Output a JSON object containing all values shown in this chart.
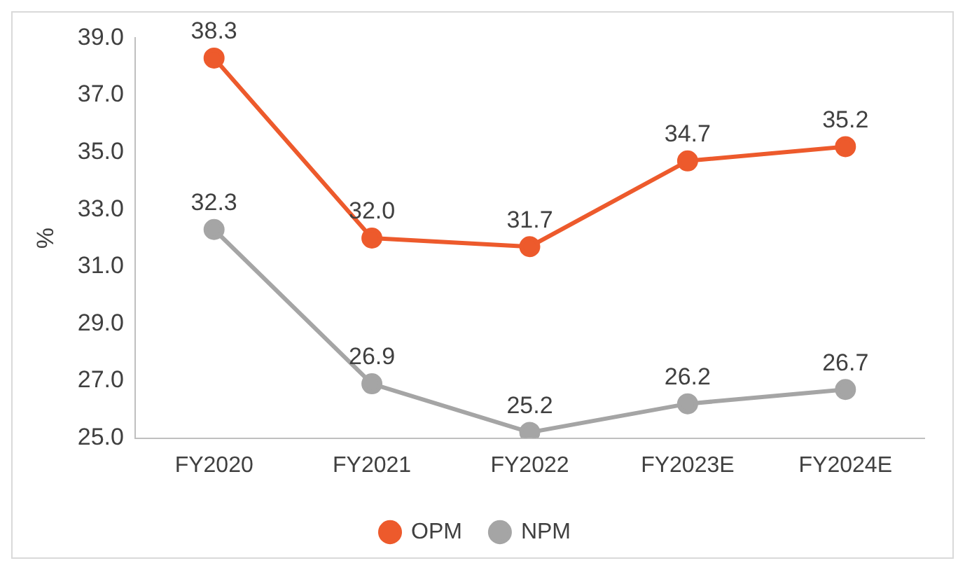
{
  "chart_data": {
    "type": "line",
    "ylabel": "%",
    "categories": [
      "FY2020",
      "FY2021",
      "FY2022",
      "FY2023E",
      "FY2024E"
    ],
    "series": [
      {
        "name": "OPM",
        "color": "#ed5a2c",
        "values": [
          38.3,
          32.0,
          31.7,
          34.7,
          35.2
        ],
        "value_labels": [
          "38.3",
          "32.0",
          "31.7",
          "34.7",
          "35.2"
        ]
      },
      {
        "name": "NPM",
        "color": "#a5a5a5",
        "values": [
          32.3,
          26.9,
          25.2,
          26.2,
          26.7
        ],
        "value_labels": [
          "32.3",
          "26.9",
          "25.2",
          "26.2",
          "26.7"
        ]
      }
    ],
    "ylim": [
      25,
      39
    ],
    "yticks": [
      {
        "value": 25,
        "label": "25.0"
      },
      {
        "value": 27,
        "label": "27.0"
      },
      {
        "value": 29,
        "label": "29.0"
      },
      {
        "value": 31,
        "label": "31.0"
      },
      {
        "value": 33,
        "label": "33.0"
      },
      {
        "value": 35,
        "label": "35.0"
      },
      {
        "value": 37,
        "label": "37.0"
      },
      {
        "value": 39,
        "label": "39.0"
      }
    ],
    "grid": false,
    "legend": "bottom",
    "marker": "circle",
    "line_style": "solid"
  }
}
